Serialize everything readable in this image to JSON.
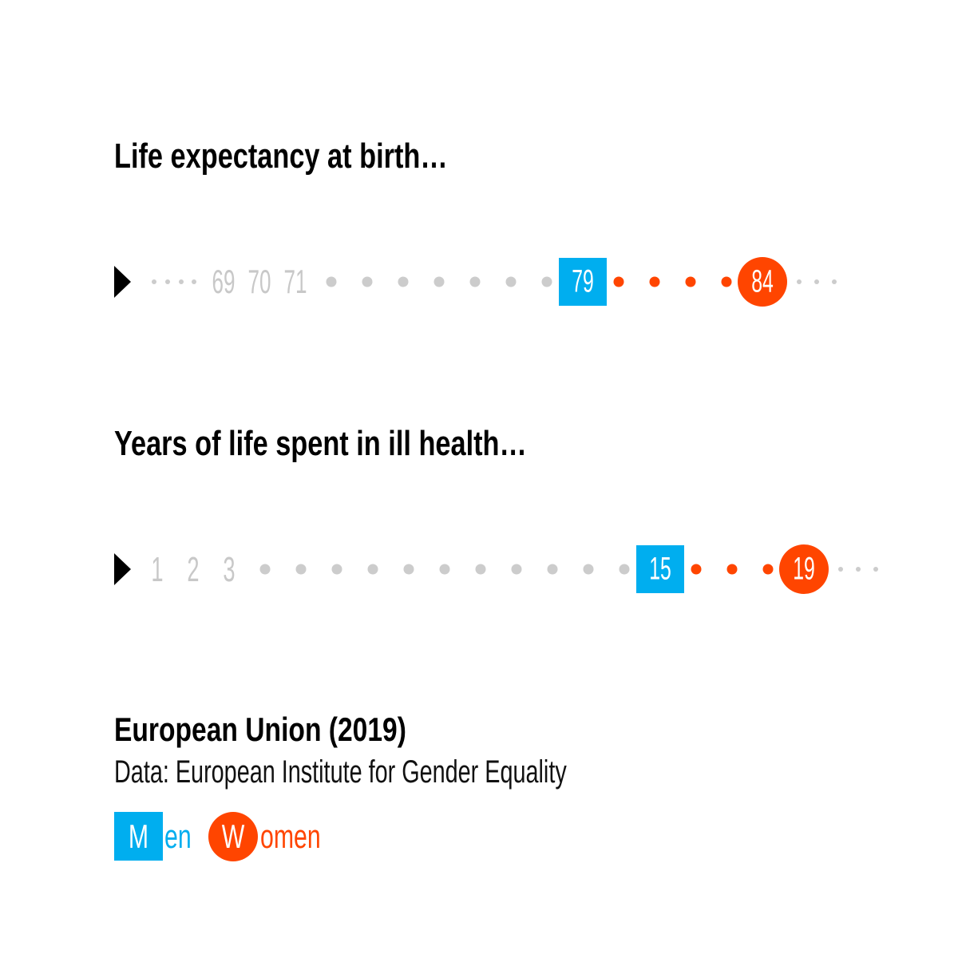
{
  "colors": {
    "men": "#00aeef",
    "women": "#ff4500",
    "neutral": "#cccccc",
    "text": "#000000",
    "muted": "#c8c8c8"
  },
  "chart_data": [
    {
      "type": "dot-strip",
      "title": "Life expectancy at birth…",
      "visible_labels": [
        "69",
        "70",
        "71"
      ],
      "series": [
        {
          "name": "Men",
          "values": [
            79
          ]
        },
        {
          "name": "Women",
          "values": [
            84
          ]
        }
      ]
    },
    {
      "type": "dot-strip",
      "title": "Years of life spent in ill health…",
      "visible_labels": [
        "1",
        "2",
        "3"
      ],
      "series": [
        {
          "name": "Men",
          "values": [
            15
          ]
        },
        {
          "name": "Women",
          "values": [
            19
          ]
        }
      ]
    }
  ],
  "footer": {
    "title": "European Union (2019)",
    "source": "Data: European Institute for Gender Equality"
  },
  "legend": {
    "men": {
      "initial": "M",
      "rest": "en"
    },
    "women": {
      "initial": "W",
      "rest": "omen"
    }
  }
}
